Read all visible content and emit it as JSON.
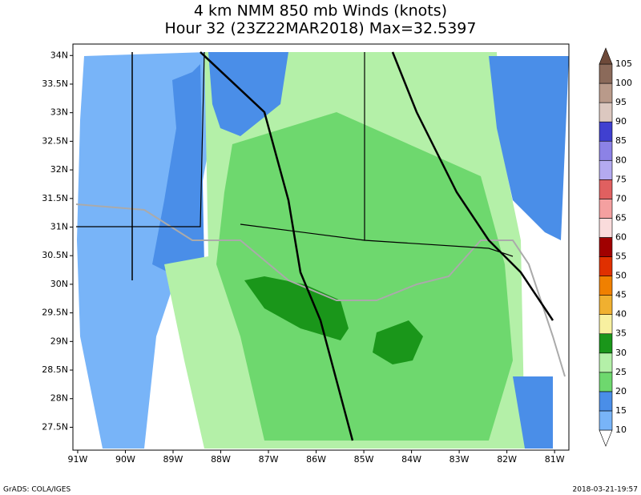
{
  "title": {
    "line1": "4 km NMM 850 mb Winds (knots)",
    "line2": "Hour 32 (23Z22MAR2018) Max=32.5397"
  },
  "map": {
    "xlim": [
      -91.1,
      -80.7
    ],
    "ylim": [
      27.1,
      34.2
    ],
    "xticks": [
      {
        "value": -91,
        "label": "91W"
      },
      {
        "value": -90,
        "label": "90W"
      },
      {
        "value": -89,
        "label": "89W"
      },
      {
        "value": -88,
        "label": "88W"
      },
      {
        "value": -87,
        "label": "87W"
      },
      {
        "value": -86,
        "label": "86W"
      },
      {
        "value": -85,
        "label": "85W"
      },
      {
        "value": -84,
        "label": "84W"
      },
      {
        "value": -83,
        "label": "83W"
      },
      {
        "value": -82,
        "label": "82W"
      },
      {
        "value": -81,
        "label": "81W"
      }
    ],
    "yticks": [
      {
        "value": 27.5,
        "label": "27.5N"
      },
      {
        "value": 28,
        "label": "28N"
      },
      {
        "value": 28.5,
        "label": "28.5N"
      },
      {
        "value": 29,
        "label": "29N"
      },
      {
        "value": 29.5,
        "label": "29.5N"
      },
      {
        "value": 30,
        "label": "30N"
      },
      {
        "value": 30.5,
        "label": "30.5N"
      },
      {
        "value": 31,
        "label": "31N"
      },
      {
        "value": 31.5,
        "label": "31.5N"
      },
      {
        "value": 32,
        "label": "32N"
      },
      {
        "value": 32.5,
        "label": "32.5N"
      },
      {
        "value": 33,
        "label": "33N"
      },
      {
        "value": 33.5,
        "label": "33.5N"
      },
      {
        "value": 34,
        "label": "34N"
      }
    ]
  },
  "colorbar": {
    "levels": [
      10,
      15,
      20,
      25,
      30,
      35,
      40,
      45,
      50,
      55,
      60,
      65,
      70,
      75,
      80,
      85,
      90,
      95,
      100,
      105
    ],
    "colors": [
      "#ffffff",
      "#78b4f8",
      "#4a8ee8",
      "#6ed86e",
      "#b4f0a8",
      "#1a961a",
      "#f8f0a0",
      "#f0b030",
      "#f08000",
      "#e03000",
      "#a00000",
      "#fadcdc",
      "#f4a0a0",
      "#e06060",
      "#b4aaf0",
      "#8c82e6",
      "#4040d0",
      "#dcc8c0",
      "#b99a8a",
      "#8b6a5a",
      "#6e4a3a"
    ]
  },
  "footer": {
    "left": "GrADS: COLA/IGES",
    "right": "2018-03-21-19:57"
  }
}
